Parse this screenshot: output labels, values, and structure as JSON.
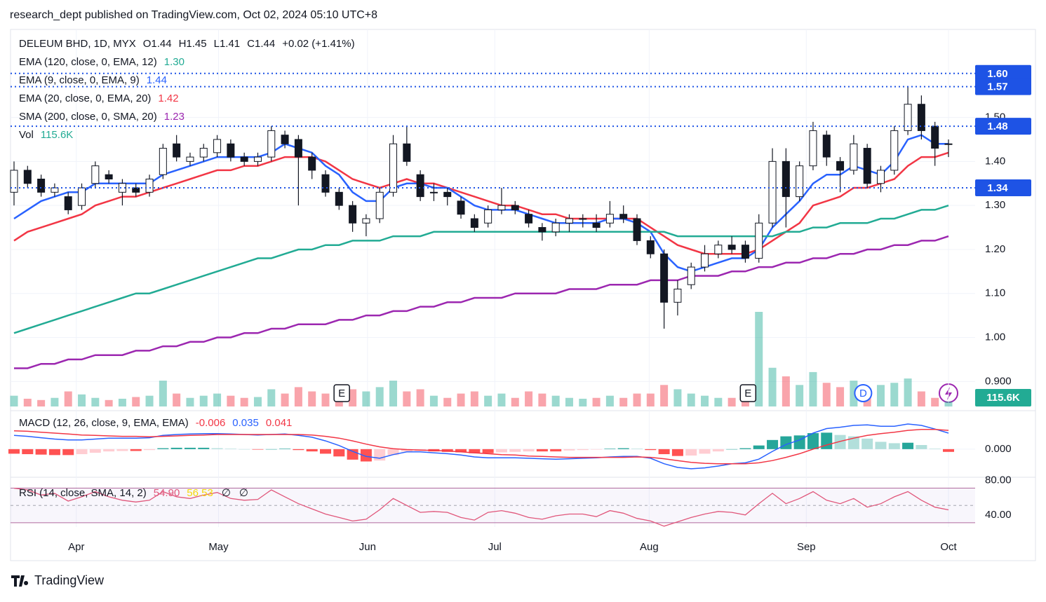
{
  "header": {
    "publisher": "research_dept published on TradingView.com, Oct 02, 2024 05:10 UTC+8",
    "brand": "TradingView"
  },
  "chart_data": [
    {
      "type": "candlestick",
      "title": "DELEUM BHD, 1D, MYX",
      "quote": [
        "O1.44",
        "H1.45",
        "L1.41",
        "C1.44",
        "+0.02 (+1.41%)"
      ],
      "open": [
        1.33,
        1.38,
        1.36,
        1.33,
        1.32,
        1.3,
        1.35,
        1.37,
        1.33,
        1.34,
        1.33,
        1.37,
        1.44,
        1.4,
        1.41,
        1.42,
        1.44,
        1.41,
        1.4,
        1.41,
        1.46,
        1.45,
        1.41,
        1.37,
        1.33,
        1.3,
        1.26,
        1.27,
        1.33,
        1.44,
        1.37,
        1.33,
        1.33,
        1.31,
        1.27,
        1.26,
        1.29,
        1.3,
        1.28,
        1.25,
        1.24,
        1.26,
        1.27,
        1.26,
        1.26,
        1.28,
        1.27,
        1.22,
        1.19,
        1.08,
        1.12,
        1.16,
        1.19,
        1.21,
        1.21,
        1.18,
        1.26,
        1.4,
        1.32,
        1.39,
        1.46,
        1.4,
        1.38,
        1.43,
        1.35,
        1.38,
        1.47,
        1.53,
        1.48,
        1.44
      ],
      "high": [
        1.4,
        1.39,
        1.37,
        1.35,
        1.33,
        1.35,
        1.4,
        1.38,
        1.36,
        1.35,
        1.37,
        1.44,
        1.46,
        1.42,
        1.44,
        1.46,
        1.45,
        1.42,
        1.42,
        1.48,
        1.47,
        1.46,
        1.42,
        1.38,
        1.34,
        1.31,
        1.28,
        1.34,
        1.46,
        1.48,
        1.38,
        1.35,
        1.34,
        1.32,
        1.28,
        1.3,
        1.34,
        1.31,
        1.29,
        1.26,
        1.27,
        1.28,
        1.28,
        1.28,
        1.31,
        1.3,
        1.28,
        1.23,
        1.2,
        1.13,
        1.17,
        1.21,
        1.22,
        1.23,
        1.22,
        1.28,
        1.43,
        1.43,
        1.4,
        1.49,
        1.47,
        1.41,
        1.46,
        1.44,
        1.39,
        1.48,
        1.57,
        1.55,
        1.49,
        1.45
      ],
      "low": [
        1.3,
        1.34,
        1.32,
        1.32,
        1.28,
        1.29,
        1.34,
        1.35,
        1.3,
        1.32,
        1.32,
        1.36,
        1.4,
        1.39,
        1.4,
        1.41,
        1.4,
        1.39,
        1.39,
        1.4,
        1.43,
        1.3,
        1.36,
        1.32,
        1.29,
        1.24,
        1.23,
        1.26,
        1.32,
        1.39,
        1.31,
        1.31,
        1.3,
        1.27,
        1.24,
        1.25,
        1.28,
        1.28,
        1.25,
        1.22,
        1.23,
        1.24,
        1.25,
        1.24,
        1.25,
        1.26,
        1.21,
        1.18,
        1.02,
        1.05,
        1.11,
        1.15,
        1.18,
        1.19,
        1.17,
        1.17,
        1.25,
        1.25,
        1.31,
        1.38,
        1.39,
        1.33,
        1.37,
        1.34,
        1.33,
        1.37,
        1.46,
        1.45,
        1.39,
        1.41
      ],
      "close": [
        1.38,
        1.35,
        1.33,
        1.34,
        1.29,
        1.34,
        1.39,
        1.36,
        1.35,
        1.33,
        1.36,
        1.43,
        1.41,
        1.41,
        1.43,
        1.45,
        1.41,
        1.4,
        1.41,
        1.47,
        1.44,
        1.41,
        1.38,
        1.33,
        1.3,
        1.26,
        1.27,
        1.33,
        1.44,
        1.4,
        1.32,
        1.33,
        1.32,
        1.28,
        1.25,
        1.29,
        1.3,
        1.29,
        1.26,
        1.24,
        1.26,
        1.27,
        1.27,
        1.25,
        1.28,
        1.27,
        1.22,
        1.19,
        1.08,
        1.11,
        1.16,
        1.19,
        1.21,
        1.2,
        1.18,
        1.26,
        1.4,
        1.32,
        1.39,
        1.47,
        1.41,
        1.38,
        1.44,
        1.35,
        1.38,
        1.47,
        1.53,
        1.47,
        1.43,
        1.44
      ],
      "up_color": "#ffffff",
      "down_color": "#131722",
      "ylim": [
        0.84,
        1.7
      ],
      "yticks": [
        {
          "value": 0.9,
          "label": "0.900"
        },
        {
          "value": 1.0,
          "label": "1.00"
        },
        {
          "value": 1.1,
          "label": "1.10"
        },
        {
          "value": 1.2,
          "label": "1.20"
        },
        {
          "value": 1.3,
          "label": "1.30"
        },
        {
          "value": 1.4,
          "label": "1.40"
        },
        {
          "value": 1.5,
          "label": "1.50"
        }
      ],
      "levels": [
        {
          "value": 1.6,
          "label": "1.60"
        },
        {
          "value": 1.57,
          "label": "1.57"
        },
        {
          "value": 1.48,
          "label": "1.48"
        },
        {
          "value": 1.34,
          "label": "1.34"
        }
      ],
      "level_color": "#1e53e5",
      "overlays": [
        {
          "name": "EMA (120, close, 0, EMA, 12)",
          "color": "#22ab94",
          "last_label": "1.30",
          "values": [
            1.01,
            1.02,
            1.03,
            1.04,
            1.05,
            1.06,
            1.07,
            1.08,
            1.09,
            1.1,
            1.1,
            1.11,
            1.12,
            1.13,
            1.14,
            1.15,
            1.16,
            1.17,
            1.18,
            1.18,
            1.19,
            1.2,
            1.2,
            1.21,
            1.21,
            1.22,
            1.22,
            1.22,
            1.23,
            1.23,
            1.23,
            1.24,
            1.24,
            1.24,
            1.24,
            1.24,
            1.24,
            1.24,
            1.24,
            1.24,
            1.24,
            1.24,
            1.24,
            1.24,
            1.24,
            1.24,
            1.24,
            1.24,
            1.24,
            1.23,
            1.23,
            1.23,
            1.23,
            1.23,
            1.23,
            1.23,
            1.23,
            1.24,
            1.24,
            1.25,
            1.25,
            1.26,
            1.26,
            1.26,
            1.27,
            1.27,
            1.28,
            1.29,
            1.29,
            1.3
          ]
        },
        {
          "name": "EMA (9, close, 0, EMA, 9)",
          "color": "#2962ff",
          "last_label": "1.44",
          "values": [
            1.27,
            1.29,
            1.31,
            1.32,
            1.33,
            1.33,
            1.35,
            1.35,
            1.35,
            1.35,
            1.35,
            1.37,
            1.38,
            1.39,
            1.4,
            1.41,
            1.41,
            1.41,
            1.41,
            1.42,
            1.44,
            1.43,
            1.42,
            1.39,
            1.37,
            1.33,
            1.31,
            1.31,
            1.34,
            1.35,
            1.35,
            1.34,
            1.34,
            1.32,
            1.3,
            1.29,
            1.29,
            1.29,
            1.28,
            1.27,
            1.26,
            1.26,
            1.26,
            1.26,
            1.27,
            1.27,
            1.26,
            1.24,
            1.19,
            1.16,
            1.15,
            1.16,
            1.17,
            1.18,
            1.18,
            1.2,
            1.25,
            1.28,
            1.31,
            1.35,
            1.37,
            1.37,
            1.39,
            1.38,
            1.37,
            1.4,
            1.45,
            1.46,
            1.44,
            1.44
          ]
        },
        {
          "name": "EMA (20, close, 0, EMA, 20)",
          "color": "#f23645",
          "last_label": "1.42",
          "values": [
            1.22,
            1.24,
            1.25,
            1.26,
            1.27,
            1.28,
            1.3,
            1.31,
            1.32,
            1.32,
            1.33,
            1.34,
            1.35,
            1.36,
            1.37,
            1.38,
            1.38,
            1.39,
            1.39,
            1.4,
            1.41,
            1.41,
            1.41,
            1.4,
            1.38,
            1.36,
            1.35,
            1.34,
            1.35,
            1.36,
            1.35,
            1.35,
            1.34,
            1.33,
            1.32,
            1.31,
            1.3,
            1.3,
            1.29,
            1.28,
            1.28,
            1.27,
            1.27,
            1.27,
            1.27,
            1.27,
            1.27,
            1.25,
            1.23,
            1.21,
            1.2,
            1.19,
            1.19,
            1.19,
            1.19,
            1.2,
            1.22,
            1.24,
            1.26,
            1.3,
            1.31,
            1.32,
            1.34,
            1.34,
            1.35,
            1.36,
            1.39,
            1.41,
            1.41,
            1.42
          ]
        },
        {
          "name": "SMA (200, close, 0, SMA, 20)",
          "color": "#9c27b0",
          "last_label": "1.23",
          "values": [
            0.93,
            0.93,
            0.94,
            0.94,
            0.95,
            0.95,
            0.96,
            0.96,
            0.96,
            0.97,
            0.97,
            0.98,
            0.98,
            0.99,
            0.99,
            1.0,
            1.0,
            1.01,
            1.01,
            1.02,
            1.02,
            1.03,
            1.03,
            1.03,
            1.04,
            1.04,
            1.05,
            1.05,
            1.06,
            1.06,
            1.07,
            1.07,
            1.08,
            1.08,
            1.09,
            1.09,
            1.09,
            1.1,
            1.1,
            1.1,
            1.1,
            1.11,
            1.11,
            1.11,
            1.12,
            1.12,
            1.12,
            1.13,
            1.13,
            1.13,
            1.14,
            1.14,
            1.14,
            1.15,
            1.15,
            1.16,
            1.16,
            1.17,
            1.17,
            1.18,
            1.18,
            1.19,
            1.19,
            1.2,
            1.2,
            1.21,
            1.21,
            1.22,
            1.22,
            1.23
          ]
        }
      ],
      "volume": {
        "name": "Vol",
        "last_label": "115.6K",
        "up_color": "#22ab94",
        "down_color": "#f23645",
        "values": [
          250,
          180,
          150,
          200,
          350,
          280,
          200,
          150,
          180,
          220,
          250,
          600,
          300,
          200,
          250,
          300,
          250,
          200,
          220,
          400,
          300,
          450,
          350,
          300,
          250,
          400,
          350,
          450,
          600,
          350,
          400,
          250,
          200,
          300,
          350,
          250,
          300,
          200,
          350,
          300,
          250,
          200,
          180,
          200,
          250,
          200,
          300,
          300,
          500,
          400,
          300,
          250,
          200,
          200,
          250,
          2200,
          900,
          700,
          500,
          800,
          550,
          450,
          600,
          400,
          500,
          550,
          650,
          350,
          200,
          115.6
        ]
      },
      "xticks": [
        {
          "value": 4.6,
          "label": "Apr"
        },
        {
          "value": 15.1,
          "label": "May"
        },
        {
          "value": 26.1,
          "label": "Jun"
        },
        {
          "value": 35.5,
          "label": "Jul"
        },
        {
          "value": 46.9,
          "label": "Aug"
        },
        {
          "value": 58.5,
          "label": "Sep"
        },
        {
          "value": 69,
          "label": "Oct"
        }
      ],
      "events": [
        "E",
        "E",
        "D"
      ]
    },
    {
      "type": "macd",
      "title": "MACD (12, 26, close, 9, EMA, EMA)",
      "histogram": {
        "values": [
          -0.01,
          -0.011,
          -0.012,
          -0.013,
          -0.013,
          -0.011,
          -0.008,
          -0.005,
          -0.004,
          -0.004,
          -0.002,
          0.002,
          0.003,
          0.003,
          0.003,
          0.002,
          0.001,
          0.0,
          -0.001,
          0.0,
          0.001,
          -0.002,
          -0.005,
          -0.01,
          -0.016,
          -0.023,
          -0.027,
          -0.025,
          -0.013,
          -0.005,
          -0.004,
          -0.005,
          -0.006,
          -0.007,
          -0.009,
          -0.009,
          -0.007,
          -0.006,
          -0.005,
          -0.005,
          -0.005,
          -0.003,
          -0.002,
          -0.001,
          0.001,
          0.002,
          0.001,
          -0.002,
          -0.011,
          -0.015,
          -0.014,
          -0.01,
          -0.005,
          0.0,
          0.002,
          0.008,
          0.02,
          0.028,
          0.03,
          0.035,
          0.036,
          0.031,
          0.028,
          0.023,
          0.016,
          0.013,
          0.014,
          0.009,
          0.001,
          -0.006
        ],
        "color": "#f23645"
      },
      "macd": {
        "color": "#2962ff",
        "values": [
          0.03,
          0.028,
          0.025,
          0.022,
          0.02,
          0.02,
          0.022,
          0.024,
          0.024,
          0.024,
          0.025,
          0.03,
          0.032,
          0.033,
          0.034,
          0.034,
          0.033,
          0.032,
          0.031,
          0.032,
          0.033,
          0.03,
          0.026,
          0.018,
          0.008,
          -0.005,
          -0.016,
          -0.02,
          -0.012,
          -0.006,
          -0.006,
          -0.008,
          -0.01,
          -0.013,
          -0.017,
          -0.019,
          -0.019,
          -0.019,
          -0.02,
          -0.021,
          -0.022,
          -0.021,
          -0.02,
          -0.019,
          -0.017,
          -0.016,
          -0.016,
          -0.02,
          -0.032,
          -0.04,
          -0.043,
          -0.041,
          -0.037,
          -0.032,
          -0.03,
          -0.022,
          -0.005,
          0.01,
          0.02,
          0.035,
          0.045,
          0.048,
          0.052,
          0.053,
          0.05,
          0.05,
          0.055,
          0.052,
          0.044,
          0.035
        ]
      },
      "signal": {
        "color": "#f23645",
        "values": [
          0.04,
          0.039,
          0.037,
          0.035,
          0.033,
          0.031,
          0.03,
          0.029,
          0.028,
          0.028,
          0.027,
          0.028,
          0.029,
          0.03,
          0.031,
          0.032,
          0.032,
          0.032,
          0.032,
          0.032,
          0.032,
          0.032,
          0.031,
          0.028,
          0.024,
          0.018,
          0.011,
          0.005,
          0.001,
          -0.001,
          -0.002,
          -0.003,
          -0.004,
          -0.006,
          -0.008,
          -0.01,
          -0.012,
          -0.013,
          -0.015,
          -0.016,
          -0.017,
          -0.018,
          -0.018,
          -0.018,
          -0.018,
          -0.018,
          -0.017,
          -0.018,
          -0.021,
          -0.025,
          -0.029,
          -0.031,
          -0.032,
          -0.032,
          -0.032,
          -0.03,
          -0.025,
          -0.018,
          -0.01,
          0.0,
          0.009,
          0.017,
          0.024,
          0.03,
          0.034,
          0.037,
          0.041,
          0.043,
          0.043,
          0.041
        ]
      },
      "ylim": [
        -0.06,
        0.078
      ],
      "yticks": [
        {
          "value": 0,
          "label": "0.000"
        }
      ]
    },
    {
      "type": "rsi",
      "title": "RSI (14, close, SMA, 14, 2)",
      "color": "#e0567a",
      "last_label": "54.90",
      "values": [
        80,
        78,
        72,
        74,
        65,
        70,
        76,
        70,
        66,
        64,
        66,
        76,
        70,
        68,
        72,
        75,
        68,
        66,
        67,
        78,
        70,
        62,
        56,
        50,
        46,
        42,
        44,
        55,
        68,
        60,
        52,
        53,
        52,
        46,
        43,
        52,
        54,
        51,
        46,
        44,
        48,
        50,
        50,
        47,
        54,
        51,
        45,
        42,
        36,
        41,
        46,
        50,
        53,
        52,
        49,
        62,
        74,
        62,
        68,
        76,
        66,
        62,
        68,
        58,
        62,
        70,
        76,
        66,
        58,
        54.9
      ],
      "sma_last": 56.53,
      "sma_color": "#f5d60a",
      "na_labels": [
        "∅",
        "∅"
      ],
      "ylim": [
        35,
        91
      ],
      "yticks": [
        {
          "value": 80,
          "label": "80.00"
        },
        {
          "value": 40,
          "label": "40.00"
        }
      ]
    }
  ]
}
